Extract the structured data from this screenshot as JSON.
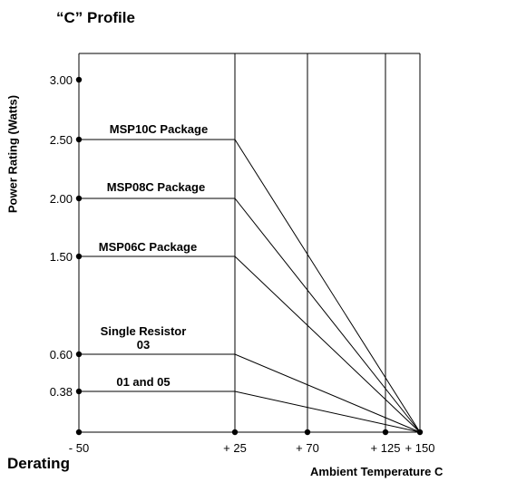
{
  "title": "“C” Profile",
  "footer_left": "Derating",
  "chart_data": {
    "type": "line",
    "title": "“C” Profile",
    "xlabel": "Ambient Temperature  C",
    "ylabel": "Power Rating (Watts)",
    "x_ticks": [
      -50,
      25,
      70,
      125,
      150
    ],
    "x_tick_labels": [
      "- 50",
      "+ 25",
      "+ 70",
      "+ 125",
      "+ 150"
    ],
    "y_ticks": [
      0.38,
      0.6,
      1.5,
      2.0,
      2.5,
      3.0
    ],
    "y_tick_labels": [
      "0.38",
      "0.60",
      "1.50",
      "2.00",
      "2.50",
      "3.00"
    ],
    "grid": "vertical lines at x ticks",
    "series": [
      {
        "name": "MSP10C Package",
        "x": [
          -50,
          25,
          150
        ],
        "y": [
          2.5,
          2.5,
          0
        ]
      },
      {
        "name": "MSP08C Package",
        "x": [
          -50,
          25,
          150
        ],
        "y": [
          2.0,
          2.0,
          0
        ]
      },
      {
        "name": "MSP06C Package",
        "x": [
          -50,
          25,
          150
        ],
        "y": [
          1.5,
          1.5,
          0
        ]
      },
      {
        "name": "Single Resistor 03",
        "x": [
          -50,
          25,
          150
        ],
        "y": [
          0.6,
          0.6,
          0
        ]
      },
      {
        "name": "01 and 05",
        "x": [
          -50,
          25,
          150
        ],
        "y": [
          0.38,
          0.38,
          0
        ]
      }
    ]
  },
  "colors": {
    "line": "#000000",
    "background": "#ffffff"
  }
}
